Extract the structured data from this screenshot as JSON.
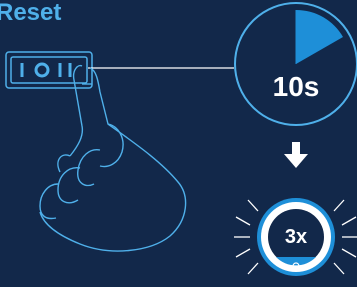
{
  "header": {
    "title": "Reset"
  },
  "timer": {
    "label": "10s"
  },
  "counter": {
    "label": "3x"
  }
}
